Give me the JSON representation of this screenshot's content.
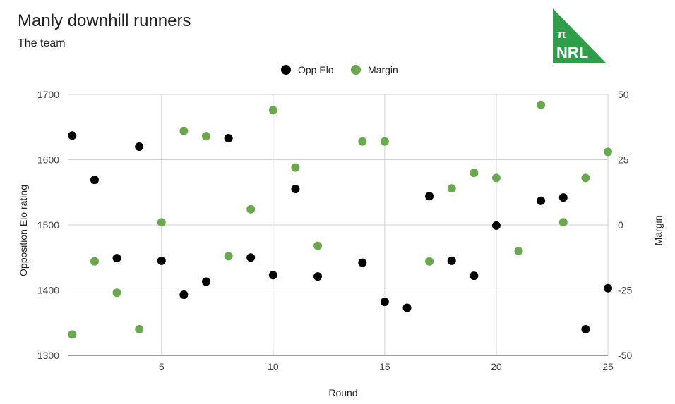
{
  "header": {
    "title": "Manly downhill runners",
    "subtitle": "The team"
  },
  "logo": {
    "text_top": "π",
    "text_bottom": "NRL",
    "color": "#2e9e4a"
  },
  "chart_data": {
    "type": "scatter",
    "xlabel": "Round",
    "ylabel_left": "Opposition Elo rating",
    "ylabel_right": "Margin",
    "xlim": [
      0.8,
      25
    ],
    "x_ticks": [
      5,
      10,
      15,
      20,
      25
    ],
    "y_left_lim": [
      1300,
      1700
    ],
    "y_left_ticks": [
      1300,
      1400,
      1500,
      1600,
      1700
    ],
    "y_right_lim": [
      -50,
      50
    ],
    "y_right_ticks": [
      -50,
      -25,
      0,
      25,
      50
    ],
    "grid": true,
    "legend_position": "top",
    "series": [
      {
        "name": "Opp Elo",
        "axis": "left",
        "color": "#000000",
        "points": [
          [
            1,
            1637
          ],
          [
            2,
            1569
          ],
          [
            3,
            1449
          ],
          [
            4,
            1620
          ],
          [
            5,
            1445
          ],
          [
            6,
            1393
          ],
          [
            7,
            1413
          ],
          [
            8,
            1633
          ],
          [
            9,
            1450
          ],
          [
            10,
            1423
          ],
          [
            11,
            1555
          ],
          [
            12,
            1421
          ],
          [
            14,
            1442
          ],
          [
            15,
            1382
          ],
          [
            16,
            1373
          ],
          [
            17,
            1544
          ],
          [
            18,
            1445
          ],
          [
            19,
            1422
          ],
          [
            20,
            1499
          ],
          [
            22,
            1537
          ],
          [
            23,
            1542
          ],
          [
            24,
            1340
          ],
          [
            25,
            1403
          ]
        ]
      },
      {
        "name": "Margin",
        "axis": "right",
        "color": "#6aa84f",
        "points": [
          [
            1,
            -42
          ],
          [
            2,
            -14
          ],
          [
            3,
            -26
          ],
          [
            4,
            -40
          ],
          [
            5,
            1
          ],
          [
            6,
            36
          ],
          [
            7,
            34
          ],
          [
            8,
            -12
          ],
          [
            9,
            6
          ],
          [
            10,
            44
          ],
          [
            11,
            22
          ],
          [
            12,
            -8
          ],
          [
            14,
            32
          ],
          [
            15,
            32
          ],
          [
            17,
            -14
          ],
          [
            18,
            14
          ],
          [
            19,
            20
          ],
          [
            20,
            18
          ],
          [
            21,
            -10
          ],
          [
            22,
            46
          ],
          [
            23,
            1
          ],
          [
            24,
            18
          ],
          [
            25,
            28
          ]
        ]
      }
    ]
  }
}
